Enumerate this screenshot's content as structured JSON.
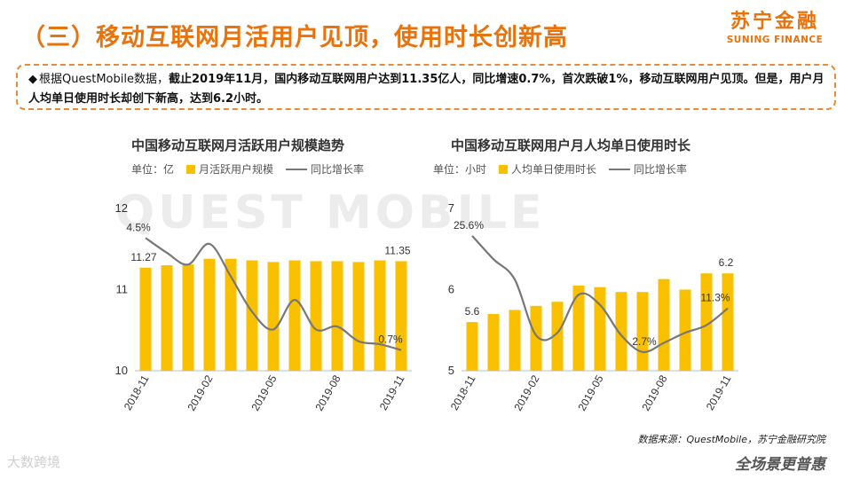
{
  "header": {
    "title": "（三）移动互联网月活用户见顶，使用时长创新高",
    "logo_cn": "苏宁金融",
    "logo_en": "SUNING FINANCE"
  },
  "summary": {
    "bullet": "◆",
    "part1": "根据QuestMobile数据，",
    "part2_bold": "截止2019年11月，国内移动互联网用户达到11.35亿人，同比增速0.7%，首次跌破1%，移动互联网用户见顶。但是，用户月人均单日使用时长却创下新高，达到6.2小时。"
  },
  "watermark": "QUEST MOBILE",
  "colors": {
    "accent": "#e8720c",
    "bar": "#f9c000",
    "line": "#777777"
  },
  "chart_data": [
    {
      "type": "bar+line",
      "title": "中国移动互联网月活跃用户规模趋势",
      "unit_label": "单位：亿",
      "legend": {
        "bar": "月活跃用户规模",
        "line": "同比增长率"
      },
      "categories": [
        "2018-11",
        "2018-12",
        "2019-01",
        "2019-02",
        "2019-03",
        "2019-04",
        "2019-05",
        "2019-06",
        "2019-07",
        "2019-08",
        "2019-09",
        "2019-10",
        "2019-11"
      ],
      "x_tick_labels": [
        "2018-11",
        "2019-02",
        "2019-05",
        "2019-08",
        "2019-11"
      ],
      "y_ticks": [
        "10",
        "11",
        "12"
      ],
      "ylim": [
        10,
        12
      ],
      "series": [
        {
          "name": "月活跃用户规模",
          "kind": "bar",
          "values": [
            11.27,
            11.3,
            11.31,
            11.38,
            11.38,
            11.36,
            11.34,
            11.36,
            11.35,
            11.35,
            11.34,
            11.36,
            11.35
          ]
        },
        {
          "name": "同比增长率",
          "kind": "line",
          "values_pct": [
            4.5,
            4.0,
            3.6,
            4.3,
            3.2,
            2.0,
            1.4,
            2.4,
            1.4,
            1.5,
            1.0,
            0.9,
            0.7
          ]
        }
      ],
      "line_ylim_pct": [
        0,
        5.5
      ],
      "annotations": [
        "4.5%",
        "11.27",
        "11.35",
        "0.7%"
      ]
    },
    {
      "type": "bar+line",
      "title": "中国移动互联网用户月人均单日使用时长",
      "unit_label": "单位：小时",
      "legend": {
        "bar": "人均单日使用时长",
        "line": "同比增长率"
      },
      "categories": [
        "2018-11",
        "2018-12",
        "2019-01",
        "2019-02",
        "2019-03",
        "2019-04",
        "2019-05",
        "2019-06",
        "2019-07",
        "2019-08",
        "2019-09",
        "2019-10",
        "2019-11"
      ],
      "x_tick_labels": [
        "2018-11",
        "2019-02",
        "2019-05",
        "2019-08",
        "2019-11"
      ],
      "y_ticks": [
        "5",
        "6",
        "7"
      ],
      "ylim": [
        5,
        7
      ],
      "series": [
        {
          "name": "人均单日使用时长",
          "kind": "bar",
          "values": [
            5.6,
            5.7,
            5.75,
            5.8,
            5.85,
            6.05,
            6.03,
            5.97,
            5.97,
            6.13,
            6.0,
            6.2,
            6.2
          ]
        },
        {
          "name": "同比增长率",
          "kind": "line",
          "values_pct": [
            25.6,
            21.0,
            17.0,
            6.0,
            6.5,
            14.0,
            12.0,
            6.0,
            2.7,
            4.5,
            6.5,
            8.0,
            11.3
          ]
        }
      ],
      "line_ylim_pct": [
        -1,
        31
      ],
      "annotations": [
        "25.6%",
        "5.6",
        "6.2",
        "2.7%",
        "11.3%"
      ]
    }
  ],
  "source_text": "数据来源：QuestMobile，苏宁金融研究院",
  "footer_left": "大数跨境",
  "footer_right": "全场景更普惠"
}
